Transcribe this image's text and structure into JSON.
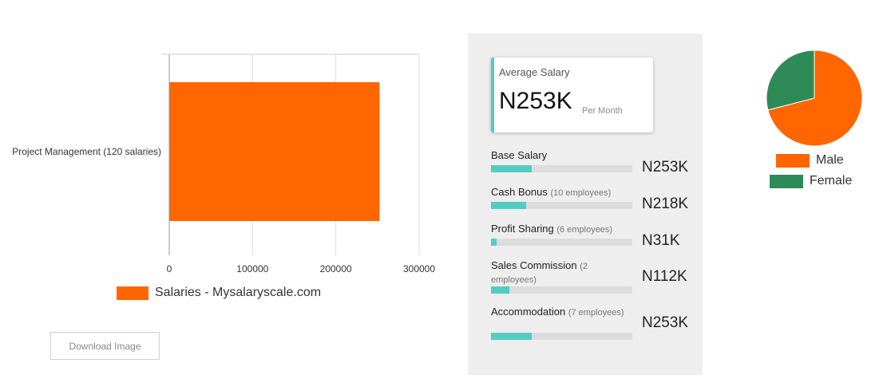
{
  "chart_data": [
    {
      "type": "bar",
      "orientation": "horizontal",
      "categories": [
        "Project Management (120 salaries)"
      ],
      "series": [
        {
          "name": "Salaries - Mysalaryscale.com",
          "values": [
            252500
          ]
        }
      ],
      "xlim": [
        0,
        300000
      ],
      "x_ticks": [
        "0",
        "100000",
        "200000",
        "300000"
      ],
      "grid": true,
      "legend": "bottom",
      "color": "#ff6600"
    },
    {
      "type": "pie",
      "categories": [
        "Male",
        "Female"
      ],
      "values": [
        71,
        29
      ],
      "colors": [
        "#ff6600",
        "#2e8b57"
      ],
      "legend": "bottom"
    }
  ],
  "download": {
    "label": "Download Image"
  },
  "summary": {
    "title": "Average Salary",
    "value": "N253K",
    "period": "Per Month",
    "accent": "#52cdc2"
  },
  "components": [
    {
      "label": "Base Salary",
      "employees": "",
      "value": "N253K",
      "fraction": 0.29
    },
    {
      "label": "Cash Bonus",
      "employees": "(10 employees)",
      "value": "N218K",
      "fraction": 0.25
    },
    {
      "label": "Profit Sharing",
      "employees": "(6 employees)",
      "value": "N31K",
      "fraction": 0.04
    },
    {
      "label": "Sales Commission",
      "employees": "(2 employees)",
      "value": "N112K",
      "fraction": 0.13
    },
    {
      "label": "Accommodation",
      "employees": "(7 employees)",
      "value": "N253K",
      "fraction": 0.29
    }
  ]
}
